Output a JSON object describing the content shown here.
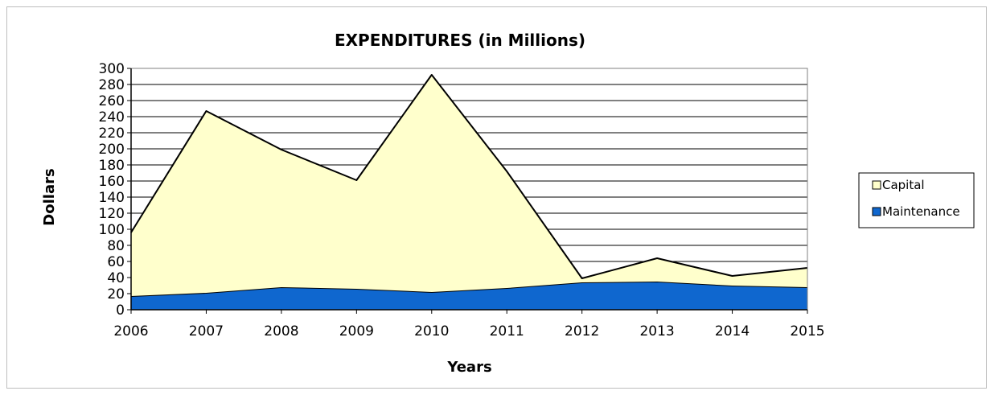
{
  "chart_data": {
    "type": "area",
    "stacked": true,
    "title": "EXPENDITURES (in Millions)",
    "xlabel": "Years",
    "ylabel": "Dollars",
    "x": [
      "2006",
      "2007",
      "2008",
      "2009",
      "2010",
      "2011",
      "2012",
      "2013",
      "2014",
      "2015"
    ],
    "ylim": [
      0,
      300
    ],
    "yticks": [
      0,
      20,
      40,
      60,
      80,
      100,
      120,
      140,
      160,
      180,
      200,
      220,
      240,
      260,
      280,
      300
    ],
    "grid": true,
    "legend_position": "right",
    "series": [
      {
        "name": "Maintenance",
        "color": "#0f67cf",
        "values": [
          17,
          21,
          28,
          26,
          22,
          27,
          34,
          35,
          30,
          28
        ]
      },
      {
        "name": "Capital",
        "color": "#ffffcc",
        "values": [
          79,
          226,
          171,
          135,
          270,
          145,
          5,
          29,
          12,
          24
        ]
      }
    ]
  }
}
